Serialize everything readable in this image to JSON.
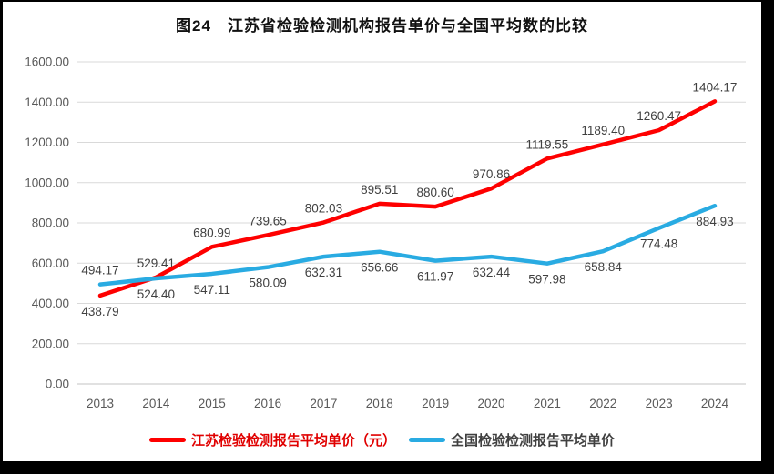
{
  "figure": {
    "title": "图24　江苏省检验检测机构报告单价与全国平均数的比较"
  },
  "chart_data": {
    "type": "line",
    "title": "图24　江苏省检验检测机构报告单价与全国平均数的比较",
    "categories": [
      "2013",
      "2014",
      "2015",
      "2016",
      "2017",
      "2018",
      "2019",
      "2020",
      "2021",
      "2022",
      "2023",
      "2024"
    ],
    "series": [
      {
        "name": "江苏检验检测报告平均单价（元）",
        "color": "#fe0000",
        "legend_text_color": "#e00000",
        "values": [
          438.79,
          529.41,
          680.99,
          739.65,
          802.03,
          895.51,
          880.6,
          970.86,
          1119.55,
          1189.4,
          1260.47,
          1404.17
        ],
        "data_label_position": "above",
        "data_label_overrides": {
          "0": "below"
        }
      },
      {
        "name": "全国检验检测报告平均单价",
        "color": "#29abe2",
        "legend_text_color": "#404040",
        "values": [
          494.17,
          524.4,
          547.11,
          580.09,
          632.31,
          656.66,
          611.97,
          632.44,
          597.98,
          658.84,
          774.48,
          884.93
        ],
        "data_label_position": "below",
        "data_label_overrides": {
          "0": "above"
        }
      }
    ],
    "xlabel": "",
    "ylabel": "",
    "ylim": [
      0,
      1600
    ],
    "ytick_step": 200,
    "ytick_labels": [
      "0.00",
      "200.00",
      "400.00",
      "600.00",
      "800.00",
      "1000.00",
      "1200.00",
      "1400.00",
      "1600.00"
    ],
    "grid": true,
    "legend_position": "bottom",
    "data_label_color": "#404040",
    "axis_tick_color": "#595959",
    "gridline_color": "#d9d9d9",
    "axis_line_color": "#c3c3c3"
  }
}
